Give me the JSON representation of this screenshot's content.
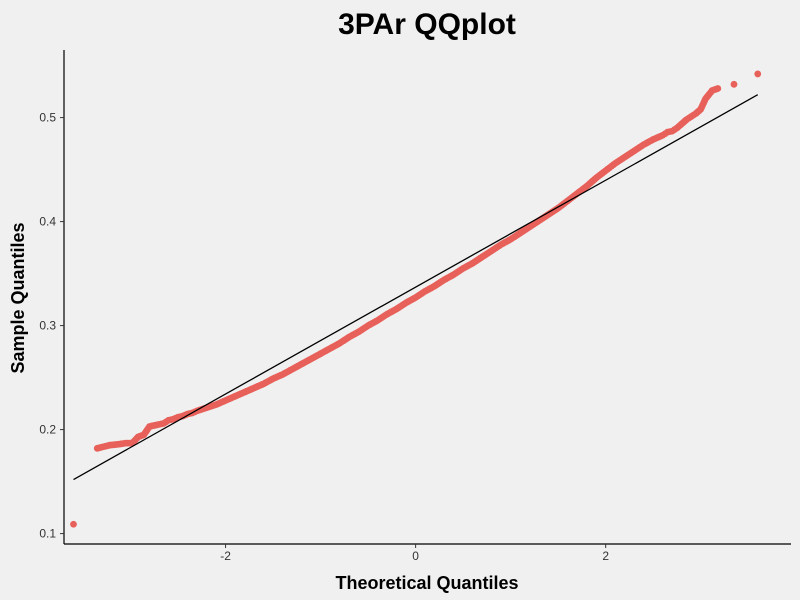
{
  "chart_data": {
    "type": "scatter",
    "title": "3PAr QQplot",
    "xlabel": "Theoretical Quantiles",
    "ylabel": "Sample Quantiles",
    "xlim": [
      -3.7,
      3.95
    ],
    "ylim": [
      0.09,
      0.565
    ],
    "x_ticks": [
      -2,
      0,
      2
    ],
    "x_tick_labels": [
      "-2",
      "0",
      "2"
    ],
    "y_ticks": [
      0.1,
      0.2,
      0.3,
      0.4,
      0.5
    ],
    "y_tick_labels": [
      "0.1",
      "0.2",
      "0.3",
      "0.4",
      "0.5"
    ],
    "grid": false,
    "point_color": "#e8605a",
    "line_color": "#000000",
    "reference_line": {
      "x": [
        -3.6,
        3.6
      ],
      "y": [
        0.152,
        0.522
      ]
    },
    "series": [
      {
        "points": [
          [
            -3.6,
            0.109
          ],
          [
            -3.35,
            0.182
          ],
          [
            -3.22,
            0.185
          ],
          [
            -3.12,
            0.186
          ],
          [
            -3.05,
            0.187
          ],
          [
            -2.98,
            0.187
          ],
          [
            -2.92,
            0.193
          ],
          [
            -2.86,
            0.195
          ],
          [
            -2.8,
            0.203
          ],
          [
            -2.75,
            0.204
          ],
          [
            -2.7,
            0.205
          ],
          [
            -2.65,
            0.206
          ],
          [
            -2.6,
            0.209
          ],
          [
            -2.55,
            0.21
          ],
          [
            -2.5,
            0.212
          ],
          [
            -2.45,
            0.213
          ],
          [
            -2.4,
            0.215
          ],
          [
            -2.35,
            0.216
          ],
          [
            -2.3,
            0.218
          ],
          [
            -2.2,
            0.221
          ],
          [
            -2.1,
            0.224
          ],
          [
            -2.0,
            0.228
          ],
          [
            -1.9,
            0.232
          ],
          [
            -1.8,
            0.236
          ],
          [
            -1.7,
            0.24
          ],
          [
            -1.6,
            0.244
          ],
          [
            -1.5,
            0.249
          ],
          [
            -1.4,
            0.253
          ],
          [
            -1.3,
            0.258
          ],
          [
            -1.2,
            0.263
          ],
          [
            -1.1,
            0.268
          ],
          [
            -1.0,
            0.273
          ],
          [
            -0.9,
            0.278
          ],
          [
            -0.8,
            0.283
          ],
          [
            -0.7,
            0.289
          ],
          [
            -0.6,
            0.294
          ],
          [
            -0.5,
            0.3
          ],
          [
            -0.4,
            0.305
          ],
          [
            -0.3,
            0.311
          ],
          [
            -0.2,
            0.316
          ],
          [
            -0.1,
            0.322
          ],
          [
            0.0,
            0.327
          ],
          [
            0.1,
            0.333
          ],
          [
            0.2,
            0.338
          ],
          [
            0.3,
            0.344
          ],
          [
            0.4,
            0.349
          ],
          [
            0.5,
            0.355
          ],
          [
            0.6,
            0.36
          ],
          [
            0.7,
            0.366
          ],
          [
            0.8,
            0.372
          ],
          [
            0.9,
            0.378
          ],
          [
            1.0,
            0.383
          ],
          [
            1.1,
            0.389
          ],
          [
            1.2,
            0.395
          ],
          [
            1.3,
            0.401
          ],
          [
            1.4,
            0.407
          ],
          [
            1.5,
            0.413
          ],
          [
            1.6,
            0.42
          ],
          [
            1.7,
            0.427
          ],
          [
            1.8,
            0.434
          ],
          [
            1.9,
            0.442
          ],
          [
            2.0,
            0.449
          ],
          [
            2.1,
            0.456
          ],
          [
            2.2,
            0.462
          ],
          [
            2.3,
            0.468
          ],
          [
            2.4,
            0.474
          ],
          [
            2.5,
            0.479
          ],
          [
            2.6,
            0.483
          ],
          [
            2.65,
            0.486
          ],
          [
            2.7,
            0.487
          ],
          [
            2.75,
            0.49
          ],
          [
            2.8,
            0.494
          ],
          [
            2.85,
            0.498
          ],
          [
            2.9,
            0.501
          ],
          [
            2.95,
            0.504
          ],
          [
            3.0,
            0.508
          ],
          [
            3.05,
            0.518
          ],
          [
            3.12,
            0.526
          ],
          [
            3.18,
            0.528
          ],
          [
            3.35,
            0.532
          ],
          [
            3.6,
            0.542
          ]
        ]
      }
    ]
  }
}
